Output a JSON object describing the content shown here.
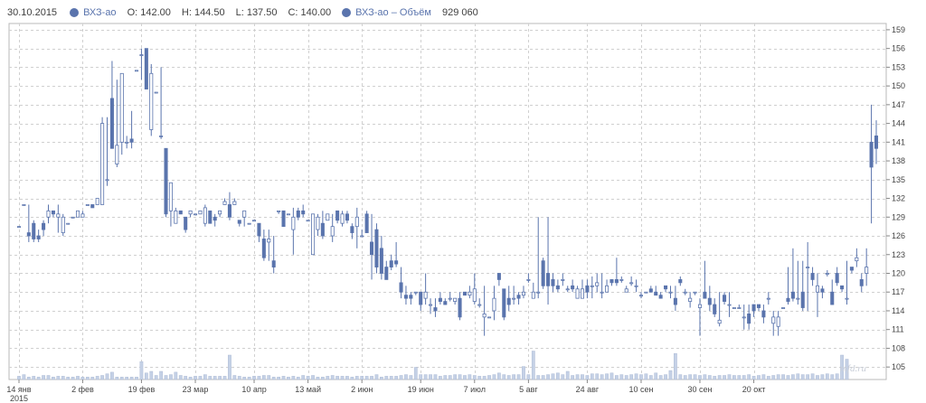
{
  "legend": {
    "date": "30.10.2015",
    "series1_name": "ВХЗ-ао",
    "open": "O: 142.00",
    "high": "H: 144.50",
    "low": "L: 137.50",
    "close": "C: 140.00",
    "series2_name": "ВХЗ-ао – Объём",
    "volume": "929 060"
  },
  "watermark": "mfd.ru",
  "colors": {
    "up": "#ffffff",
    "down": "#5a74ad",
    "edge": "#5a74ad",
    "volume": "#c5d1e6",
    "grid": "#d0d0d0"
  },
  "chart_data": {
    "type": "candlestick",
    "ylim": [
      103,
      160
    ],
    "y_ticks": [
      105,
      108,
      111,
      114,
      117,
      120,
      123,
      126,
      129,
      132,
      135,
      138,
      141,
      144,
      147,
      150,
      153,
      156,
      159
    ],
    "x_ticks": [
      {
        "label": "14 янв",
        "sub": "2015",
        "i": 0
      },
      {
        "label": "2 фев",
        "i": 13
      },
      {
        "label": "19 фев",
        "i": 25
      },
      {
        "label": "23 мар",
        "i": 36
      },
      {
        "label": "10 апр",
        "i": 48
      },
      {
        "label": "13 май",
        "i": 59
      },
      {
        "label": "2 июн",
        "i": 70
      },
      {
        "label": "19 июн",
        "i": 82
      },
      {
        "label": "7 июл",
        "i": 93
      },
      {
        "label": "5 авг",
        "i": 104
      },
      {
        "label": "24 авг",
        "i": 116
      },
      {
        "label": "10 сен",
        "i": 127
      },
      {
        "label": "30 сен",
        "i": 139
      },
      {
        "label": "20 окт",
        "i": 150
      }
    ],
    "candles": [
      [
        127.5,
        127.5,
        127.5,
        127.5
      ],
      [
        131,
        131,
        131,
        131
      ],
      [
        126.5,
        131,
        125,
        126
      ],
      [
        128,
        128.5,
        125,
        125.5
      ],
      [
        126,
        127,
        125,
        125.5
      ],
      [
        128,
        128.5,
        126,
        127
      ],
      [
        129,
        131,
        128,
        130
      ],
      [
        130,
        130,
        129,
        129.5
      ],
      [
        129,
        131,
        126.5,
        129.5
      ],
      [
        126.5,
        129.5,
        126,
        129
      ],
      [
        128,
        128,
        128,
        128
      ],
      [
        129,
        129,
        129,
        129
      ],
      [
        129,
        130,
        129,
        130
      ],
      [
        129,
        130,
        129,
        129.5
      ],
      [
        131,
        131,
        131,
        131
      ],
      [
        131,
        131,
        130.5,
        130.5
      ],
      [
        131,
        132,
        131,
        132
      ],
      [
        131,
        145,
        131,
        144
      ],
      [
        135,
        145,
        134,
        135
      ],
      [
        148,
        154,
        140,
        140
      ],
      [
        137.5,
        151,
        137,
        140.5
      ],
      [
        141,
        152,
        139,
        152
      ],
      [
        141,
        142,
        140,
        141
      ],
      [
        141.5,
        146,
        140,
        141
      ],
      [
        152.5,
        152.5,
        152.5,
        152.5
      ],
      [
        155,
        156,
        151,
        155
      ],
      [
        156,
        156,
        149.5,
        149.5
      ],
      [
        143,
        153.5,
        142,
        152
      ],
      [
        149,
        149,
        149,
        149
      ],
      [
        142,
        153,
        141.5,
        142
      ],
      [
        140,
        140,
        129,
        129.5
      ],
      [
        130,
        134,
        127.5,
        134.5
      ],
      [
        128,
        130.5,
        128,
        130
      ],
      [
        130,
        130,
        129.5,
        129.5
      ],
      [
        129,
        129,
        126.5,
        127
      ],
      [
        129.5,
        130,
        129,
        130
      ],
      [
        129.5,
        129.5,
        129.5,
        129.5
      ],
      [
        129.5,
        130,
        129.5,
        130
      ],
      [
        128,
        131,
        127.5,
        130.5
      ],
      [
        130,
        130,
        128,
        128
      ],
      [
        129,
        129.5,
        127.5,
        128.5
      ],
      [
        129.5,
        130,
        129,
        130
      ],
      [
        131,
        132,
        131,
        131.5
      ],
      [
        131,
        133,
        128.5,
        129
      ],
      [
        131,
        132,
        131,
        131.5
      ],
      [
        128.5,
        128.5,
        127.5,
        128
      ],
      [
        129,
        130,
        127.5,
        130
      ],
      [
        128,
        128,
        128,
        128
      ],
      [
        128.5,
        128.5,
        128.5,
        128.5
      ],
      [
        128,
        128,
        125,
        126
      ],
      [
        125.5,
        127,
        122,
        122.5
      ],
      [
        125,
        127,
        122,
        125.5
      ],
      [
        122,
        126,
        120,
        121
      ],
      [
        130,
        130,
        129.5,
        130
      ],
      [
        130,
        130,
        127.5,
        127.5
      ],
      [
        129.5,
        129.5,
        129.5,
        129.5
      ],
      [
        127,
        130.5,
        123,
        129
      ],
      [
        130,
        130.5,
        128.5,
        129
      ],
      [
        130,
        131,
        129,
        129.5
      ],
      [
        128.5,
        128.5,
        128.5,
        128.5
      ],
      [
        123,
        129.5,
        123,
        129.5
      ],
      [
        127,
        129.5,
        126,
        129
      ],
      [
        128,
        130,
        125.5,
        126
      ],
      [
        128.5,
        129.5,
        128.5,
        129.5
      ],
      [
        126,
        129.5,
        125,
        127.5
      ],
      [
        130,
        130,
        128,
        128.5
      ],
      [
        128,
        130,
        127.5,
        129.5
      ],
      [
        129.5,
        130,
        128,
        128.5
      ],
      [
        127.5,
        128,
        125.5,
        126.5
      ],
      [
        127.5,
        130.5,
        124,
        129
      ],
      [
        126,
        127,
        126,
        126
      ],
      [
        129.5,
        130,
        126.5,
        126.5
      ],
      [
        125,
        129.5,
        119,
        123
      ],
      [
        127,
        128,
        120,
        121
      ],
      [
        124,
        126,
        119,
        120
      ],
      [
        121,
        122,
        119,
        119
      ],
      [
        122,
        123,
        120.5,
        121
      ],
      [
        122,
        125,
        121,
        121.5
      ],
      [
        118.5,
        121,
        116,
        117
      ],
      [
        116.5,
        118,
        115,
        116
      ],
      [
        116.5,
        117,
        115,
        116
      ],
      [
        117,
        117,
        116.5,
        117
      ],
      [
        117,
        117,
        114,
        115
      ],
      [
        116,
        120,
        115,
        117
      ],
      [
        115,
        116,
        113.5,
        115
      ],
      [
        114.5,
        116,
        113,
        114
      ],
      [
        116,
        117,
        115,
        115.5
      ],
      [
        115.5,
        116,
        115,
        115
      ],
      [
        116,
        117,
        115.5,
        116
      ],
      [
        115.5,
        116,
        115,
        116
      ],
      [
        116,
        117,
        112.5,
        113
      ],
      [
        117,
        117,
        116.5,
        116.5
      ],
      [
        116.5,
        118,
        116,
        117
      ],
      [
        115.5,
        120,
        115,
        117.5
      ],
      [
        115,
        116,
        114.5,
        115
      ],
      [
        113,
        118,
        110,
        113.5
      ],
      [
        113,
        113,
        113,
        113
      ],
      [
        114,
        118,
        112.5,
        116
      ],
      [
        120,
        120,
        118,
        119
      ],
      [
        117.5,
        117.5,
        112.5,
        113
      ],
      [
        116,
        118,
        114,
        115
      ],
      [
        116,
        118,
        115,
        116
      ],
      [
        116.5,
        117,
        115,
        116
      ],
      [
        116.5,
        118,
        116,
        117
      ],
      [
        119,
        120,
        118.5,
        119
      ],
      [
        116,
        118.5,
        116,
        117
      ],
      [
        117,
        129,
        116,
        117
      ],
      [
        122,
        122.5,
        117.5,
        118
      ],
      [
        120,
        129,
        115,
        118
      ],
      [
        119,
        120,
        117,
        118
      ],
      [
        118,
        119,
        117,
        117.5
      ],
      [
        119,
        120,
        118,
        119
      ],
      [
        117.5,
        118,
        117,
        117.5
      ],
      [
        118,
        119,
        117,
        117.5
      ],
      [
        116,
        118,
        116,
        117.5
      ],
      [
        116,
        119,
        116,
        117.5
      ],
      [
        118,
        119,
        116,
        117
      ],
      [
        118,
        119.5,
        116,
        118
      ],
      [
        118,
        120,
        117,
        118.5
      ],
      [
        117,
        120,
        116,
        117
      ],
      [
        117,
        119,
        117,
        118
      ],
      [
        119,
        119,
        118,
        118.5
      ],
      [
        119,
        122.5,
        118,
        118.5
      ],
      [
        119,
        119.5,
        118.5,
        119
      ],
      [
        117,
        118,
        117,
        117.5
      ],
      [
        118.5,
        119.5,
        118,
        118.5
      ],
      [
        118,
        119,
        117,
        118
      ],
      [
        116.5,
        117,
        116,
        116.5
      ],
      [
        117,
        117,
        117,
        117
      ],
      [
        117.5,
        118,
        117,
        117
      ],
      [
        117,
        118,
        116.5,
        116.5
      ],
      [
        116.5,
        117,
        116,
        116
      ],
      [
        118,
        118,
        117,
        117.5
      ],
      [
        117,
        118,
        116,
        117
      ],
      [
        116,
        118,
        114,
        115
      ],
      [
        119,
        119.5,
        118,
        118.5
      ],
      [
        117,
        117.5,
        116.5,
        117
      ],
      [
        115.5,
        117,
        114.5,
        116
      ],
      [
        117,
        117,
        116.5,
        117
      ],
      [
        114.5,
        116,
        110,
        115
      ],
      [
        117,
        122,
        116,
        116
      ],
      [
        116,
        118,
        114,
        115
      ],
      [
        115,
        116,
        113,
        113.5
      ],
      [
        112,
        117,
        111.5,
        112.5
      ],
      [
        116.5,
        117,
        115,
        115.5
      ],
      [
        115,
        117,
        113,
        115
      ],
      [
        114.5,
        114.5,
        114.5,
        114.5
      ],
      [
        114.5,
        115,
        114.5,
        114.5
      ],
      [
        113,
        115,
        111,
        113
      ],
      [
        113.5,
        115,
        111,
        112
      ],
      [
        115,
        115,
        113,
        114
      ],
      [
        115,
        115,
        114,
        114.5
      ],
      [
        114,
        115,
        112,
        113
      ],
      [
        116,
        117,
        115,
        116
      ],
      [
        112,
        114,
        110,
        113
      ],
      [
        111.5,
        114,
        110,
        113
      ],
      [
        114.5,
        114.5,
        114.5,
        114.5
      ],
      [
        116,
        121,
        115,
        115.5
      ],
      [
        117,
        124,
        115.5,
        116
      ],
      [
        116,
        122,
        115,
        116
      ],
      [
        117,
        122,
        114,
        114.5
      ],
      [
        121,
        125,
        114,
        121
      ],
      [
        120,
        121,
        118,
        119
      ],
      [
        117,
        120,
        113,
        118
      ],
      [
        117.5,
        118,
        116,
        117
      ],
      [
        120,
        120.5,
        119.5,
        120
      ],
      [
        117,
        119,
        115,
        115
      ],
      [
        120,
        121,
        118,
        118.5
      ],
      [
        118,
        118,
        117,
        117.5
      ],
      [
        116,
        122,
        115,
        116
      ],
      [
        121,
        121,
        120,
        120.5
      ],
      [
        122,
        124,
        121,
        122.5
      ],
      [
        119,
        120,
        117,
        118
      ],
      [
        120,
        124,
        118,
        121
      ],
      [
        141,
        147,
        128,
        137
      ],
      [
        142,
        144.5,
        137.5,
        140
      ]
    ],
    "volume": [
      0.04,
      0.06,
      0.03,
      0.04,
      0.03,
      0.05,
      0.05,
      0.03,
      0.04,
      0.04,
      0.03,
      0.03,
      0.04,
      0.03,
      0.03,
      0.03,
      0.04,
      0.05,
      0.07,
      0.09,
      0.03,
      0.03,
      0.03,
      0.03,
      0.03,
      0.22,
      0.08,
      0.1,
      0.05,
      0.1,
      0.05,
      0.06,
      0.09,
      0.05,
      0.04,
      0.03,
      0.04,
      0.04,
      0.06,
      0.04,
      0.04,
      0.04,
      0.04,
      0.3,
      0.05,
      0.04,
      0.03,
      0.03,
      0.04,
      0.04,
      0.05,
      0.05,
      0.03,
      0.03,
      0.04,
      0.03,
      0.04,
      0.03,
      0.05,
      0.04,
      0.05,
      0.03,
      0.03,
      0.04,
      0.05,
      0.04,
      0.04,
      0.04,
      0.03,
      0.04,
      0.04,
      0.04,
      0.04,
      0.06,
      0.03,
      0.04,
      0.04,
      0.04,
      0.05,
      0.06,
      0.05,
      0.15,
      0.06,
      0.06,
      0.06,
      0.06,
      0.04,
      0.05,
      0.05,
      0.06,
      0.06,
      0.05,
      0.06,
      0.05,
      0.04,
      0.04,
      0.05,
      0.06,
      0.08,
      0.06,
      0.05,
      0.06,
      0.06,
      0.16,
      0.06,
      0.35,
      0.05,
      0.05,
      0.06,
      0.07,
      0.08,
      0.06,
      0.1,
      0.05,
      0.06,
      0.06,
      0.05,
      0.07,
      0.07,
      0.06,
      0.07,
      0.08,
      0.05,
      0.06,
      0.05,
      0.06,
      0.07,
      0.06,
      0.07,
      0.05,
      0.08,
      0.05,
      0.06,
      0.11,
      0.32,
      0.06,
      0.05,
      0.06,
      0.06,
      0.05,
      0.06,
      0.05,
      0.04,
      0.05,
      0.05,
      0.06,
      0.05,
      0.05,
      0.05,
      0.06,
      0.04,
      0.05,
      0.06,
      0.04,
      0.05,
      0.06,
      0.06,
      0.05,
      0.06,
      0.07,
      0.06,
      0.06,
      0.07,
      0.05,
      0.06,
      0.07,
      0.06,
      0.07,
      0.3,
      0.25
    ]
  }
}
